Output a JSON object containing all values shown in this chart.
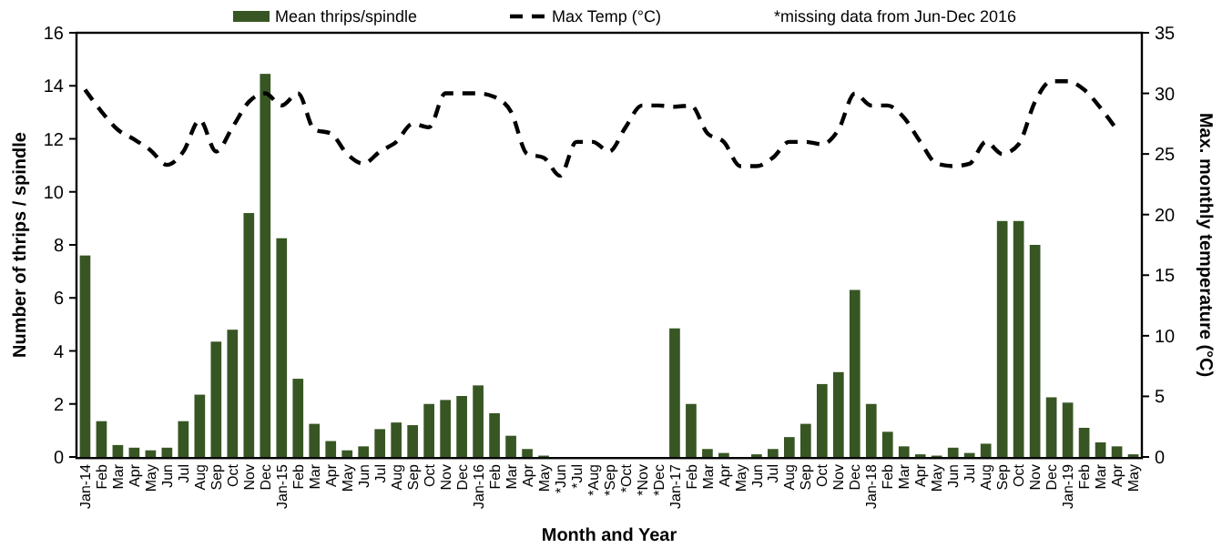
{
  "chart_data": {
    "type": "bar",
    "categories": [
      "Jan-14",
      "Feb",
      "Mar",
      "Apr",
      "May",
      "Jun",
      "Jul",
      "Aug",
      "Sep",
      "Oct",
      "Nov",
      "Dec",
      "Jan-15",
      "Feb",
      "Mar",
      "Apr",
      "May",
      "Jun",
      "Jul",
      "Aug",
      "Sep",
      "Oct",
      "Nov",
      "Dec",
      "Jan-16",
      "Feb",
      "Mar",
      "Apr",
      "May",
      "*Jun",
      "*Jul",
      "*Aug",
      "*Sep",
      "*Oct",
      "*Nov",
      "*Dec",
      "Jan-17",
      "Feb",
      "Mar",
      "Apr",
      "May",
      "Jun",
      "Jul",
      "Aug",
      "Sep",
      "Oct",
      "Nov",
      "Dec",
      "Jan-18",
      "Feb",
      "Mar",
      "Apr",
      "May",
      "Jun",
      "Jul",
      "Aug",
      "Sep",
      "Oct",
      "Nov",
      "Dec",
      "Jan-19",
      "Feb",
      "Mar",
      "Apr",
      "May"
    ],
    "series": [
      {
        "name": "Mean thrips/spindle",
        "color": "#375623",
        "values": [
          7.6,
          1.35,
          0.45,
          0.35,
          0.25,
          0.35,
          1.35,
          2.35,
          4.35,
          4.8,
          9.2,
          14.45,
          8.25,
          2.95,
          1.25,
          0.6,
          0.25,
          0.4,
          1.05,
          1.3,
          1.2,
          2.0,
          2.15,
          2.3,
          2.7,
          1.65,
          0.8,
          0.3,
          0.05,
          null,
          null,
          null,
          null,
          null,
          null,
          null,
          4.85,
          2.0,
          0.3,
          0.15,
          0,
          0.1,
          0.3,
          0.75,
          1.25,
          2.75,
          3.2,
          6.3,
          2.0,
          0.95,
          0.4,
          0.1,
          0.05,
          0.35,
          0.15,
          0.5,
          8.9,
          8.9,
          8.0,
          2.25,
          2.05,
          1.1,
          0.55,
          0.4,
          0.1
        ]
      },
      {
        "name": "Max Temp (°C)",
        "type": "line",
        "axis": "y2",
        "color": "#000000",
        "line_style": "dashed",
        "values": [
          30.3,
          28.5,
          27,
          26.2,
          25.3,
          24.1,
          25.2,
          27.8,
          25.2,
          27.2,
          29.3,
          30,
          29,
          30,
          27,
          26.7,
          25,
          24.2,
          25.2,
          26,
          27.5,
          27.2,
          30,
          30,
          30,
          29.7,
          28.5,
          25,
          24.7,
          23.2,
          26,
          26,
          25.2,
          27.2,
          29,
          29,
          28.9,
          29,
          26.7,
          26,
          24,
          24,
          24.7,
          26,
          26,
          25.8,
          27,
          30,
          29,
          29,
          28,
          26,
          24.2,
          24,
          24.2,
          26,
          25,
          25.8,
          29.3,
          31,
          31,
          30.3,
          28.8,
          27,
          null
        ]
      }
    ],
    "xlabel": "Month and Year",
    "ylabel": "Number of thrips / spindle",
    "y2label": "Max. monthly temperature (°C)",
    "ylim": [
      0,
      16
    ],
    "yticks": [
      0,
      2,
      4,
      6,
      8,
      10,
      12,
      14,
      16
    ],
    "y2lim": [
      0,
      35
    ],
    "y2ticks": [
      0,
      5,
      10,
      15,
      20,
      25,
      30,
      35
    ],
    "annotations": [
      "*missing data from Jun-Dec 2016"
    ],
    "legend": "top",
    "grid": false
  }
}
